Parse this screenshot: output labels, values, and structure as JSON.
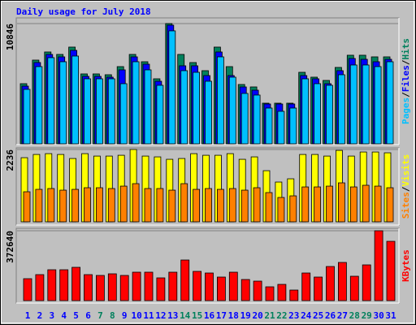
{
  "chart_data": [
    {
      "type": "bar",
      "title": "Daily usage for July 2018",
      "legend_separator": "/",
      "ylim": [
        0,
        10846
      ],
      "yticks": [
        10846
      ],
      "series": [
        {
          "name": "Hits",
          "color": "#00805c",
          "values": [
            5424,
            7550,
            8283,
            8063,
            8723,
            6304,
            6304,
            6230,
            6963,
            8063,
            7403,
            5864,
            10846,
            8063,
            7330,
            6597,
            8723,
            6963,
            5351,
            5131,
            3665,
            3665,
            3665,
            6450,
            6011,
            5717,
            6890,
            7990,
            7990,
            7843,
            7843
          ]
        },
        {
          "name": "Files",
          "color": "#0000ff",
          "values": [
            5204,
            7330,
            8063,
            7843,
            8430,
            6084,
            6084,
            6011,
            6670,
            7843,
            7183,
            5644,
            10702,
            7037,
            7037,
            6157,
            8283,
            6157,
            5131,
            4838,
            3592,
            3592,
            3592,
            6157,
            5864,
            5424,
            6597,
            7697,
            7623,
            7403,
            7623
          ]
        },
        {
          "name": "Pages",
          "color": "#00c0ff",
          "values": [
            4911,
            6964,
            7770,
            7403,
            7916,
            5864,
            5864,
            5864,
            5424,
            7403,
            6670,
            5278,
            10189,
            6597,
            6450,
            5644,
            7843,
            6011,
            4545,
            4398,
            3225,
            2932,
            3225,
            5864,
            5424,
            5278,
            6231,
            7110,
            7110,
            6964,
            7403
          ]
        }
      ]
    },
    {
      "type": "bar",
      "legend_separator": "/",
      "ylim": [
        0,
        2236
      ],
      "yticks": [
        2236
      ],
      "series": [
        {
          "name": "Visits",
          "color": "#ffff00",
          "values": [
            1983,
            2083,
            2108,
            2083,
            1958,
            2108,
            2033,
            2033,
            2058,
            2236,
            2033,
            2008,
            1933,
            1958,
            2108,
            2058,
            2058,
            2108,
            1933,
            2008,
            1581,
            1230,
            1330,
            2083,
            2083,
            2033,
            2209,
            2033,
            2159,
            2159,
            2134
          ]
        },
        {
          "name": "Sites",
          "color": "#ff8000",
          "values": [
            929,
            1004,
            1029,
            979,
            1004,
            1054,
            1054,
            1029,
            1104,
            1180,
            1029,
            1029,
            979,
            1180,
            1004,
            1029,
            1004,
            1029,
            979,
            1054,
            904,
            753,
            803,
            1079,
            1079,
            1104,
            1205,
            1079,
            1130,
            1104,
            1054
          ]
        }
      ]
    },
    {
      "type": "bar",
      "ylim": [
        0,
        372640
      ],
      "yticks": [
        372640
      ],
      "categories": [
        "1",
        "2",
        "3",
        "4",
        "5",
        "6",
        "7",
        "8",
        "9",
        "10",
        "11",
        "12",
        "13",
        "14",
        "15",
        "16",
        "17",
        "18",
        "19",
        "20",
        "21",
        "22",
        "23",
        "24",
        "25",
        "26",
        "27",
        "28",
        "29",
        "30",
        "31"
      ],
      "category_colors": [
        "#0000ff",
        "#0000ff",
        "#0000ff",
        "#0000ff",
        "#0000ff",
        "#0000ff",
        "#00805c",
        "#00805c",
        "#0000ff",
        "#0000ff",
        "#0000ff",
        "#0000ff",
        "#0000ff",
        "#00805c",
        "#00805c",
        "#0000ff",
        "#0000ff",
        "#0000ff",
        "#0000ff",
        "#0000ff",
        "#00805c",
        "#00805c",
        "#0000ff",
        "#0000ff",
        "#0000ff",
        "#0000ff",
        "#0000ff",
        "#00805c",
        "#00805c",
        "#0000ff",
        "#0000ff"
      ],
      "series": [
        {
          "name": "KBytes",
          "color": "#ff0000",
          "values": [
            116991,
            138656,
            164654,
            164654,
            177653,
            138656,
            134323,
            142989,
            134323,
            151655,
            151655,
            121324,
            151655,
            216650,
            155988,
            147322,
            125657,
            151655,
            112658,
            103992,
            73661,
            86660,
            56329,
            147322,
            125657,
            181986,
            203651,
            129990,
            190652,
            372640,
            316309
          ]
        }
      ]
    }
  ]
}
